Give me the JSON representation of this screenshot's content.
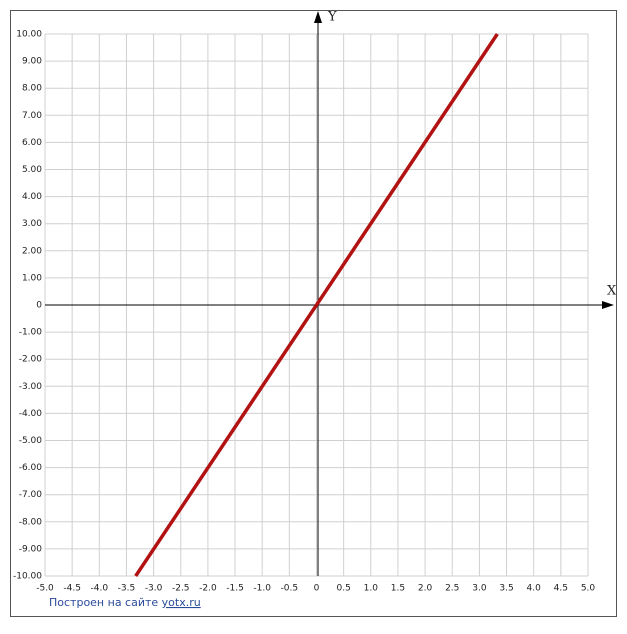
{
  "chart_data": {
    "type": "line",
    "x_label": "X",
    "y_label": "Y",
    "x": [
      -3.33,
      3.33
    ],
    "series": [
      {
        "color": "#b21212",
        "values": [
          -10,
          10
        ]
      }
    ],
    "xlim": [
      -5,
      5
    ],
    "ylim": [
      -10,
      10
    ],
    "grid": true,
    "xticks": [
      {
        "value": -5,
        "label": "-5.0"
      },
      {
        "value": -4.5,
        "label": "-4.5"
      },
      {
        "value": -4,
        "label": "-4.0"
      },
      {
        "value": -3.5,
        "label": "-3.5"
      },
      {
        "value": -3,
        "label": "-3.0"
      },
      {
        "value": -2.5,
        "label": "-2.5"
      },
      {
        "value": -2,
        "label": "-2.0"
      },
      {
        "value": -1.5,
        "label": "-1.5"
      },
      {
        "value": -1,
        "label": "-1.0"
      },
      {
        "value": -0.5,
        "label": "-0.5"
      },
      0,
      0.5,
      {
        "value": 1,
        "label": "1.0"
      },
      1.5,
      {
        "value": 2,
        "label": "2.0"
      },
      2.5,
      {
        "value": 3,
        "label": "3.0"
      },
      3.5,
      {
        "value": 4,
        "label": "4.0"
      },
      4.5,
      {
        "value": 5,
        "label": "5.0"
      }
    ],
    "yticks": [
      {
        "value": 10,
        "label": "10.00"
      },
      {
        "value": 9,
        "label": "9.00"
      },
      {
        "value": 8,
        "label": "8.00"
      },
      {
        "value": 7,
        "label": "7.00"
      },
      {
        "value": 6,
        "label": "6.00"
      },
      {
        "value": 5,
        "label": "5.00"
      },
      {
        "value": 4,
        "label": "4.00"
      },
      {
        "value": 3,
        "label": "3.00"
      },
      {
        "value": 2,
        "label": "2.00"
      },
      {
        "value": 1,
        "label": "1.00"
      },
      0,
      {
        "value": -1,
        "label": "-1.00"
      },
      {
        "value": -2,
        "label": "-2.00"
      },
      {
        "value": -3,
        "label": "-3.00"
      },
      {
        "value": -4,
        "label": "-4.00"
      },
      {
        "value": -5,
        "label": "-5.00"
      },
      {
        "value": -6,
        "label": "-6.00"
      },
      {
        "value": -7,
        "label": "-7.00"
      },
      {
        "value": -8,
        "label": "-8.00"
      },
      {
        "value": -9,
        "label": "-9.00"
      },
      {
        "value": -10,
        "label": "-10.00"
      }
    ]
  },
  "footer": {
    "text": "Построен на сайте",
    "link": "yotx.ru"
  }
}
